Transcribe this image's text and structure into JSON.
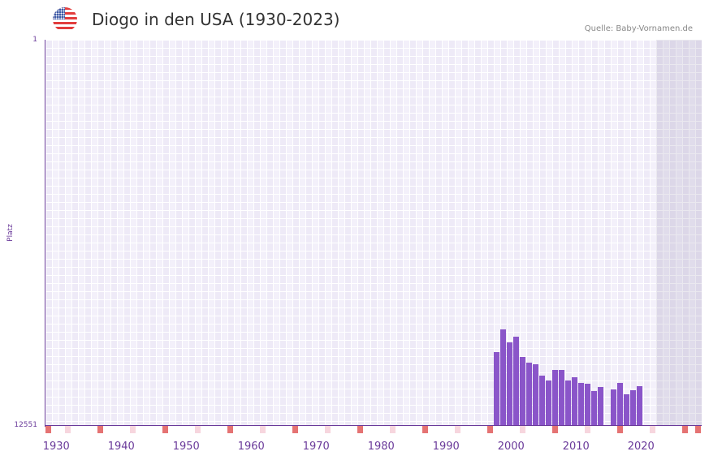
{
  "header": {
    "title": "Diogo in den USA (1930-2023)",
    "flag_icon": "us-flag-icon",
    "source": "Quelle: Baby-Vornamen.de"
  },
  "colors": {
    "bar": "#8a55c9",
    "axis": "#6a3a9a",
    "decade_marker": "#e57373",
    "half_decade_marker": "#f7d6de"
  },
  "chart_data": {
    "type": "bar",
    "title": "Diogo in den USA (1930-2023)",
    "xlabel": "",
    "ylabel": "Platz",
    "y_inverted": true,
    "ylim": [
      1,
      12551
    ],
    "yticks": [
      "1",
      "12551"
    ],
    "x_range": [
      1930,
      2030
    ],
    "xticks": [
      "1930",
      "1940",
      "1950",
      "1960",
      "1970",
      "1980",
      "1990",
      "2000",
      "2010",
      "2020"
    ],
    "grid": true,
    "shaded_future_from": 2023,
    "categories": [
      1999,
      2000,
      2001,
      2002,
      2003,
      2004,
      2005,
      2006,
      2007,
      2008,
      2009,
      2010,
      2011,
      2012,
      2013,
      2014,
      2015,
      2016,
      2017,
      2018,
      2019,
      2020,
      2021
    ],
    "values": [
      10150,
      9420,
      9840,
      9660,
      10310,
      10500,
      10550,
      10920,
      11080,
      10730,
      10730,
      11080,
      10970,
      11160,
      11180,
      11420,
      11290,
      null,
      11370,
      11160,
      11530,
      11400,
      11260
    ],
    "series": [
      {
        "name": "Platz",
        "values": [
          10150,
          9420,
          9840,
          9660,
          10310,
          10500,
          10550,
          10920,
          11080,
          10730,
          10730,
          11080,
          10970,
          11160,
          11180,
          11420,
          11290,
          null,
          11370,
          11160,
          11530,
          11400,
          11260
        ]
      }
    ]
  }
}
